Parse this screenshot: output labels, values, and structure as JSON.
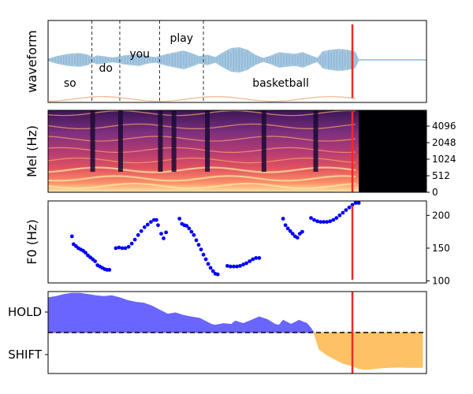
{
  "chart_data": [
    {
      "type": "line",
      "panel": "waveform",
      "ylabel": "waveform",
      "words": [
        {
          "label": "so",
          "start": 0.0,
          "end": 0.55
        },
        {
          "label": "do",
          "start": 0.55,
          "end": 0.9
        },
        {
          "label": "you",
          "start": 0.9,
          "end": 1.4
        },
        {
          "label": "play",
          "start": 1.4,
          "end": 1.95
        },
        {
          "label": "basketball",
          "start": 1.95,
          "end": 3.9
        }
      ],
      "word_boundaries": [
        0.55,
        0.9,
        1.4,
        1.95
      ],
      "speech_end": 3.9,
      "current_time": 3.82,
      "xlim": [
        0,
        4.75
      ],
      "ylim": [
        -1,
        1
      ],
      "envelope": [
        [
          0.0,
          0.02
        ],
        [
          0.1,
          0.08
        ],
        [
          0.25,
          0.14
        ],
        [
          0.4,
          0.16
        ],
        [
          0.5,
          0.12
        ],
        [
          0.56,
          0.06
        ],
        [
          0.62,
          0.1
        ],
        [
          0.7,
          0.08
        ],
        [
          0.8,
          0.05
        ],
        [
          0.88,
          0.07
        ],
        [
          0.95,
          0.1
        ],
        [
          1.05,
          0.12
        ],
        [
          1.15,
          0.14
        ],
        [
          1.25,
          0.08
        ],
        [
          1.35,
          0.06
        ],
        [
          1.42,
          0.1
        ],
        [
          1.5,
          0.14
        ],
        [
          1.6,
          0.18
        ],
        [
          1.7,
          0.22
        ],
        [
          1.8,
          0.16
        ],
        [
          1.9,
          0.08
        ],
        [
          2.0,
          0.12
        ],
        [
          2.1,
          0.06
        ],
        [
          2.2,
          0.18
        ],
        [
          2.3,
          0.28
        ],
        [
          2.4,
          0.3
        ],
        [
          2.5,
          0.24
        ],
        [
          2.6,
          0.12
        ],
        [
          2.7,
          0.04
        ],
        [
          2.8,
          0.1
        ],
        [
          2.9,
          0.18
        ],
        [
          3.0,
          0.16
        ],
        [
          3.1,
          0.14
        ],
        [
          3.2,
          0.18
        ],
        [
          3.3,
          0.1
        ],
        [
          3.38,
          0.04
        ],
        [
          3.45,
          0.2
        ],
        [
          3.55,
          0.24
        ],
        [
          3.65,
          0.26
        ],
        [
          3.75,
          0.24
        ],
        [
          3.85,
          0.2
        ],
        [
          3.9,
          0.0
        ],
        [
          4.75,
          0.0
        ]
      ],
      "color": "#a6c8e0"
    },
    {
      "type": "heatmap",
      "panel": "mel-spectrogram",
      "ylabel": "Mel (Hz)",
      "yticks": [
        0,
        512,
        1024,
        2048,
        4096
      ],
      "xlim": [
        0,
        4.75
      ],
      "signal_end": 3.9,
      "current_time": 3.82,
      "colormap": "magma"
    },
    {
      "type": "scatter",
      "panel": "f0",
      "ylabel": "F0 (Hz)",
      "yticks": [
        100,
        150,
        200
      ],
      "ylim": [
        97,
        222
      ],
      "xlim": [
        0,
        4.75
      ],
      "current_time": 3.82,
      "color": "#0000ff",
      "points": [
        [
          0.3,
          168
        ],
        [
          0.32,
          156
        ],
        [
          0.35,
          153
        ],
        [
          0.38,
          150
        ],
        [
          0.41,
          148
        ],
        [
          0.44,
          146
        ],
        [
          0.47,
          143
        ],
        [
          0.5,
          139
        ],
        [
          0.53,
          136
        ],
        [
          0.56,
          133
        ],
        [
          0.59,
          130
        ],
        [
          0.62,
          124
        ],
        [
          0.65,
          122
        ],
        [
          0.68,
          120
        ],
        [
          0.71,
          118
        ],
        [
          0.74,
          117
        ],
        [
          0.77,
          117
        ],
        [
          0.85,
          150
        ],
        [
          0.89,
          151
        ],
        [
          0.93,
          150
        ],
        [
          0.97,
          150
        ],
        [
          1.01,
          152
        ],
        [
          1.05,
          157
        ],
        [
          1.09,
          163
        ],
        [
          1.13,
          170
        ],
        [
          1.17,
          176
        ],
        [
          1.21,
          182
        ],
        [
          1.25,
          186
        ],
        [
          1.29,
          190
        ],
        [
          1.33,
          193
        ],
        [
          1.36,
          193
        ],
        [
          1.38,
          185
        ],
        [
          1.42,
          172
        ],
        [
          1.45,
          165
        ],
        [
          1.48,
          174
        ],
        [
          1.65,
          195
        ],
        [
          1.68,
          187
        ],
        [
          1.71,
          185
        ],
        [
          1.74,
          184
        ],
        [
          1.77,
          180
        ],
        [
          1.8,
          175
        ],
        [
          1.83,
          170
        ],
        [
          1.86,
          162
        ],
        [
          1.89,
          155
        ],
        [
          1.92,
          148
        ],
        [
          1.95,
          140
        ],
        [
          1.98,
          133
        ],
        [
          2.01,
          126
        ],
        [
          2.04,
          120
        ],
        [
          2.07,
          115
        ],
        [
          2.1,
          111
        ],
        [
          2.13,
          110
        ],
        [
          2.25,
          123
        ],
        [
          2.29,
          122
        ],
        [
          2.33,
          122
        ],
        [
          2.37,
          122
        ],
        [
          2.41,
          123
        ],
        [
          2.45,
          125
        ],
        [
          2.49,
          127
        ],
        [
          2.53,
          130
        ],
        [
          2.57,
          133
        ],
        [
          2.61,
          135
        ],
        [
          2.65,
          135
        ],
        [
          2.95,
          195
        ],
        [
          2.98,
          185
        ],
        [
          3.01,
          180
        ],
        [
          3.04,
          176
        ],
        [
          3.07,
          172
        ],
        [
          3.1,
          168
        ],
        [
          3.13,
          166
        ],
        [
          3.16,
          172
        ],
        [
          3.19,
          175
        ],
        [
          3.3,
          196
        ],
        [
          3.34,
          193
        ],
        [
          3.38,
          191
        ],
        [
          3.42,
          190
        ],
        [
          3.46,
          190
        ],
        [
          3.5,
          190
        ],
        [
          3.54,
          191
        ],
        [
          3.58,
          193
        ],
        [
          3.62,
          196
        ],
        [
          3.66,
          200
        ],
        [
          3.7,
          204
        ],
        [
          3.74,
          208
        ],
        [
          3.78,
          212
        ],
        [
          3.82,
          216
        ],
        [
          3.86,
          219
        ],
        [
          3.9,
          219
        ]
      ]
    },
    {
      "type": "area",
      "panel": "hold-shift",
      "yticklabels": [
        "HOLD",
        "SHIFT"
      ],
      "ylim": [
        -1,
        1
      ],
      "threshold": 0,
      "xlim": [
        0,
        4.75
      ],
      "current_time": 3.82,
      "hold_color": "#6a65ff",
      "shift_color": "#ffc166",
      "series": [
        [
          0.0,
          0.85
        ],
        [
          0.1,
          0.88
        ],
        [
          0.2,
          0.93
        ],
        [
          0.3,
          0.96
        ],
        [
          0.4,
          0.96
        ],
        [
          0.5,
          0.93
        ],
        [
          0.6,
          0.9
        ],
        [
          0.7,
          0.88
        ],
        [
          0.8,
          0.9
        ],
        [
          0.9,
          0.85
        ],
        [
          1.0,
          0.78
        ],
        [
          1.1,
          0.74
        ],
        [
          1.2,
          0.72
        ],
        [
          1.3,
          0.65
        ],
        [
          1.4,
          0.55
        ],
        [
          1.5,
          0.45
        ],
        [
          1.6,
          0.48
        ],
        [
          1.7,
          0.42
        ],
        [
          1.8,
          0.38
        ],
        [
          1.9,
          0.35
        ],
        [
          2.0,
          0.25
        ],
        [
          2.05,
          0.2
        ],
        [
          2.1,
          0.18
        ],
        [
          2.2,
          0.22
        ],
        [
          2.3,
          0.2
        ],
        [
          2.35,
          0.28
        ],
        [
          2.45,
          0.22
        ],
        [
          2.55,
          0.3
        ],
        [
          2.65,
          0.38
        ],
        [
          2.75,
          0.32
        ],
        [
          2.85,
          0.2
        ],
        [
          2.9,
          0.18
        ],
        [
          2.95,
          0.3
        ],
        [
          3.05,
          0.2
        ],
        [
          3.15,
          0.3
        ],
        [
          3.25,
          0.22
        ],
        [
          3.3,
          0.1
        ],
        [
          3.33,
          0.02
        ],
        [
          3.34,
          -0.02
        ],
        [
          3.4,
          -0.4
        ],
        [
          3.5,
          -0.55
        ],
        [
          3.6,
          -0.65
        ],
        [
          3.7,
          -0.75
        ],
        [
          3.8,
          -0.8
        ],
        [
          3.9,
          -0.88
        ],
        [
          4.0,
          -0.9
        ],
        [
          4.1,
          -0.88
        ],
        [
          4.2,
          -0.86
        ],
        [
          4.3,
          -0.85
        ],
        [
          4.4,
          -0.84
        ],
        [
          4.5,
          -0.85
        ],
        [
          4.6,
          -0.85
        ],
        [
          4.7,
          -0.85
        ]
      ]
    }
  ]
}
